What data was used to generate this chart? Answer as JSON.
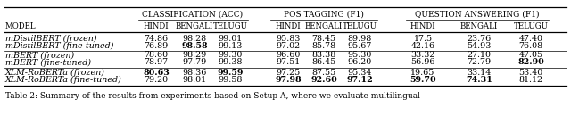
{
  "caption": "Table 2: Summary of the results from experiments based on Setup A, where we evaluate multilingual",
  "group_labels": [
    "Classification (Acc)",
    "POS Tagging (F1)",
    "Question Answering (F1)"
  ],
  "sub_labels": [
    "Hindi",
    "Bengali",
    "Telugu"
  ],
  "row_header": "Model",
  "models": [
    "mDistilBERT (frozen)",
    "mDistilBERT (fine-tuned)",
    "mBERT (frozen)",
    "mBERT (fine-tuned)",
    "XLM-RoBERTa (frozen)",
    "XLM-RoBERTa (fine-tuned)"
  ],
  "row_values": [
    [
      "74.86",
      "98.28",
      "99.01",
      "95.83",
      "78.45",
      "89.98",
      "17.5",
      "23.76",
      "47.40"
    ],
    [
      "76.89",
      "98.58",
      "99.13",
      "97.02",
      "85.78",
      "95.67",
      "42.16",
      "54.93",
      "76.08"
    ],
    [
      "78.60",
      "98.29",
      "99.30",
      "96.60",
      "83.38",
      "95.30",
      "33.32",
      "27.10",
      "47.05"
    ],
    [
      "78.97",
      "97.79",
      "99.38",
      "97.51",
      "86.45",
      "96.20",
      "56.96",
      "72.79",
      "82.90"
    ],
    [
      "80.63",
      "98.36",
      "99.59",
      "97.25",
      "87.55",
      "95.34",
      "19.65",
      "33.14",
      "53.40"
    ],
    [
      "79.20",
      "98.01",
      "99.58",
      "97.98",
      "92.60",
      "97.12",
      "59.70",
      "74.31",
      "81.12"
    ]
  ],
  "row_bold": [
    [
      false,
      false,
      false,
      false,
      false,
      false,
      false,
      false,
      false
    ],
    [
      false,
      true,
      false,
      false,
      false,
      false,
      false,
      false,
      false
    ],
    [
      false,
      false,
      false,
      false,
      false,
      false,
      false,
      false,
      false
    ],
    [
      false,
      false,
      false,
      false,
      false,
      false,
      false,
      false,
      true
    ],
    [
      true,
      false,
      true,
      false,
      false,
      false,
      false,
      false,
      false
    ],
    [
      false,
      false,
      false,
      true,
      true,
      true,
      true,
      true,
      false
    ]
  ],
  "bg": "#ffffff",
  "fg": "#000000"
}
